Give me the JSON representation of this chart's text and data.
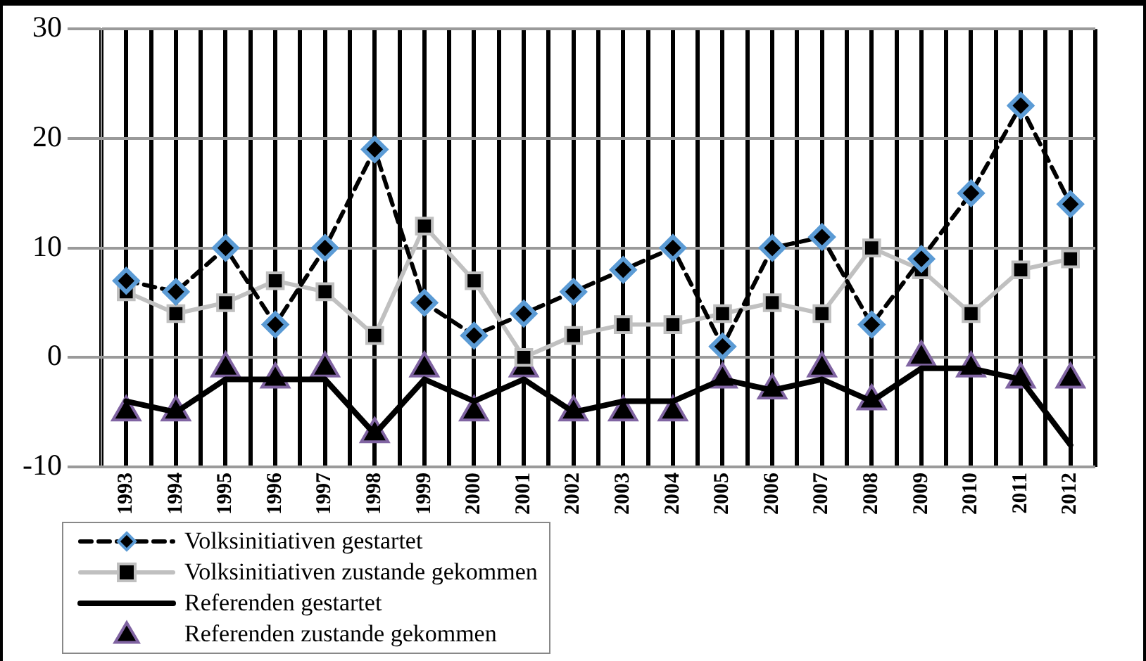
{
  "chart_data": {
    "type": "line",
    "categories": [
      "1993",
      "1994",
      "1995",
      "1996",
      "1997",
      "1998",
      "1999",
      "2000",
      "2001",
      "2002",
      "2003",
      "2004",
      "2005",
      "2006",
      "2007",
      "2008",
      "2009",
      "2010",
      "2011",
      "2012"
    ],
    "series": [
      {
        "name": "Volksinitiativen gestartet",
        "color": "#000000",
        "marker": "diamond",
        "line_style": "dashed",
        "values": [
          7,
          6,
          10,
          3,
          10,
          19,
          5,
          2,
          4,
          6,
          8,
          10,
          1,
          10,
          11,
          3,
          9,
          15,
          23,
          14
        ]
      },
      {
        "name": "Volksinitiativen zustande gekommen",
        "color": "#c0c0c0",
        "marker": "square",
        "line_style": "solid",
        "values": [
          6,
          4,
          5,
          7,
          6,
          2,
          12,
          7,
          0,
          2,
          3,
          3,
          4,
          5,
          4,
          10,
          8,
          4,
          8,
          9
        ]
      },
      {
        "name": "Referenden gestartet",
        "color": "#000000",
        "marker": "none",
        "line_style": "solid",
        "values": [
          -4,
          -5,
          -2,
          -2,
          -2,
          -7,
          -2,
          -4,
          -2,
          -5,
          -4,
          -4,
          -2,
          -3,
          -2,
          -4,
          -1,
          -1,
          -2,
          -8
        ]
      },
      {
        "name": "Referenden zustande gekommen",
        "type": "scatter",
        "color": "#000000",
        "marker": "triangle",
        "values": [
          -5,
          -5,
          -1,
          -2,
          -1,
          -7,
          -1,
          -5,
          -1,
          -5,
          -5,
          -5,
          -2,
          -3,
          -1,
          -4,
          0,
          -1,
          -2,
          -2
        ]
      }
    ],
    "ylim": [
      -10,
      30
    ],
    "yticks": [
      -10,
      0,
      10,
      20,
      30
    ],
    "grid": true,
    "legend": "bottom left"
  }
}
